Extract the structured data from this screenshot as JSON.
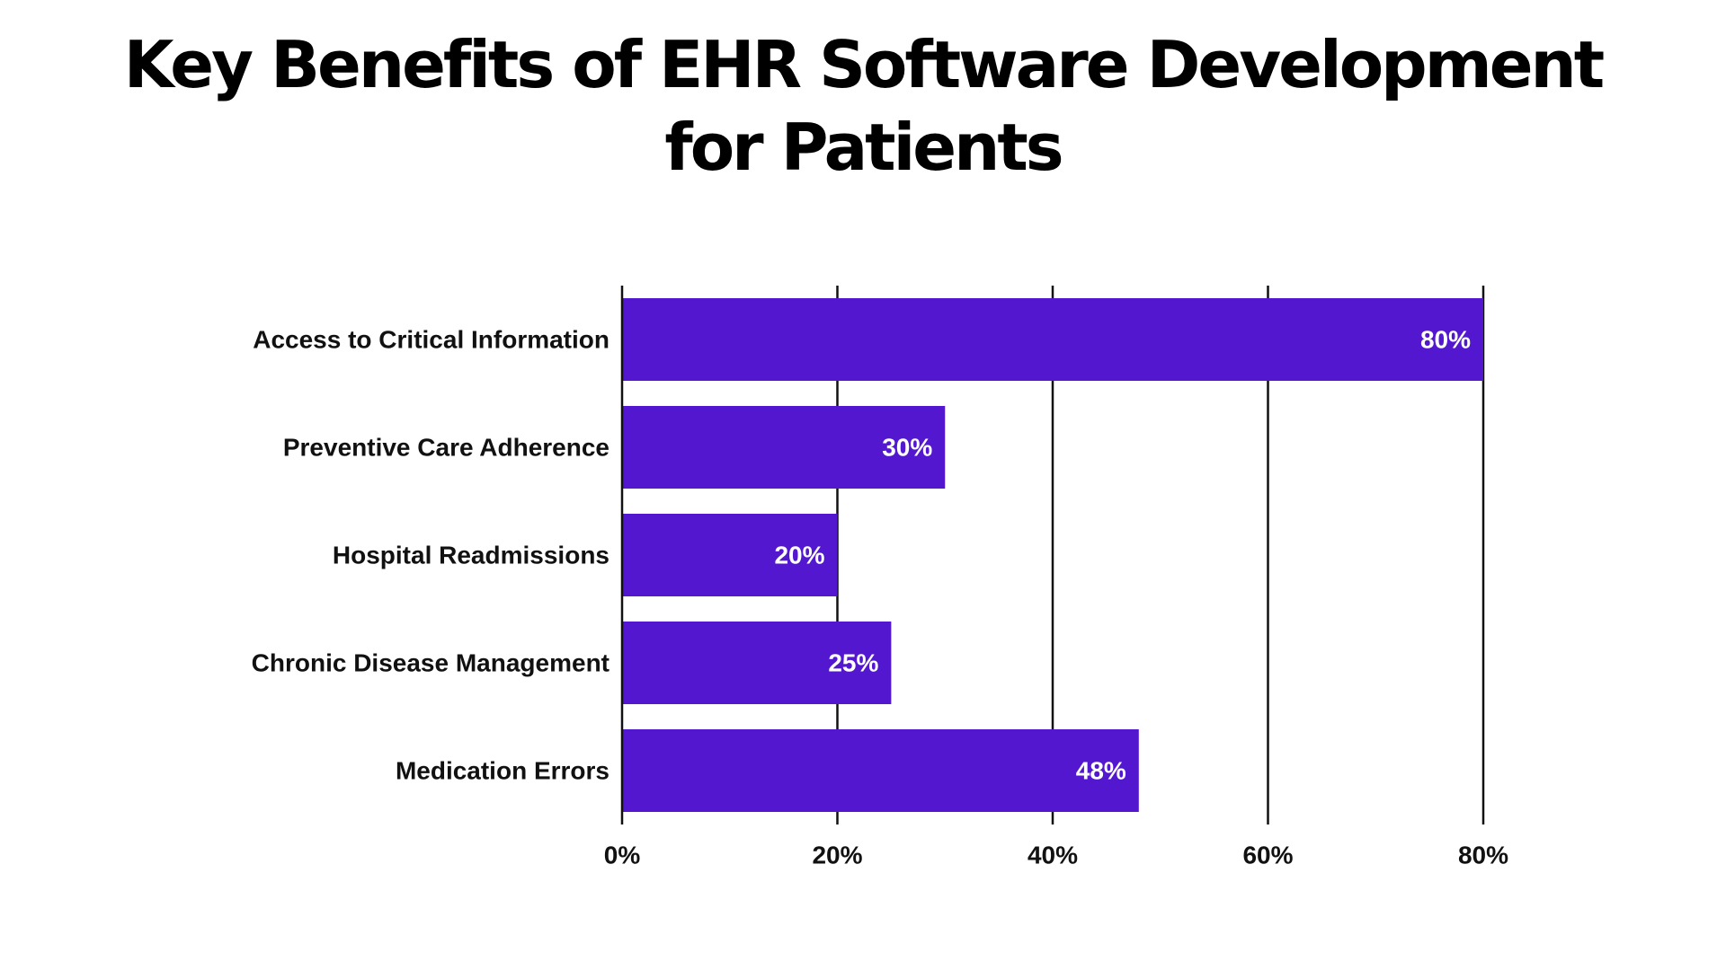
{
  "chart_data": {
    "type": "bar",
    "orientation": "horizontal",
    "title": "Key Benefits of EHR Software Development for Patients",
    "title_lines": [
      "Key Benefits of EHR Software Development",
      "for Patients"
    ],
    "categories": [
      "Access to Critical Information",
      "Preventive Care Adherence",
      "Hospital Readmissions",
      "Chronic Disease Management",
      "Medication Errors"
    ],
    "values": [
      80,
      30,
      20,
      25,
      48
    ],
    "value_labels": [
      "80%",
      "30%",
      "20%",
      "25%",
      "48%"
    ],
    "xlim": [
      0,
      80
    ],
    "xticks": [
      0,
      20,
      40,
      60,
      80
    ],
    "xtick_labels": [
      "0%",
      "20%",
      "40%",
      "60%",
      "80%"
    ],
    "xlabel": "",
    "ylabel": "",
    "grid": "vertical",
    "legend": "none",
    "colors": {
      "bar": "#5417D0",
      "grid": "#111111",
      "value_text": "#ffffff",
      "label_text": "#111111"
    }
  }
}
